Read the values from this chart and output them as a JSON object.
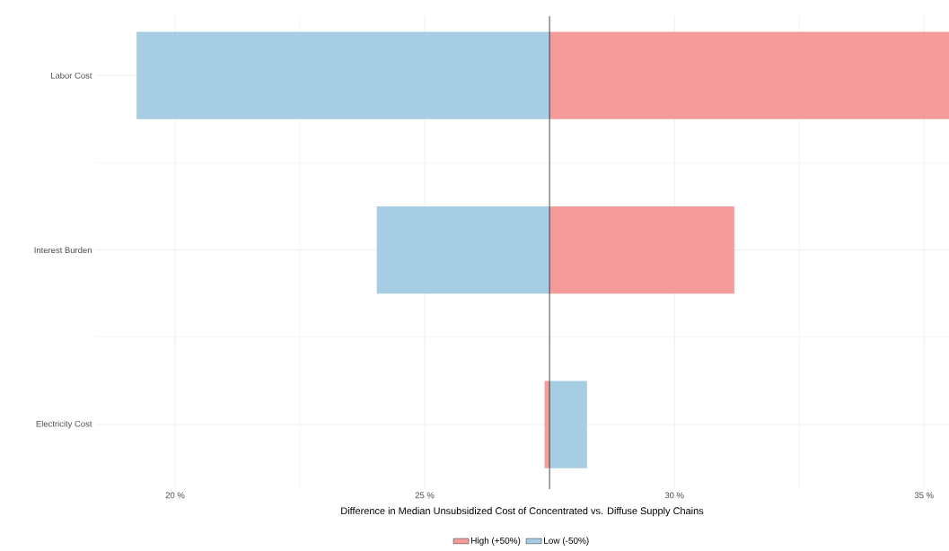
{
  "chart_data": {
    "type": "bar",
    "orientation": "horizontal",
    "categories": [
      "Labor Cost",
      "Interest Burden",
      "Electricity Cost"
    ],
    "series": [
      {
        "name": "High (+50%)",
        "color": "#f59b9a",
        "values": [
          8.0,
          3.7,
          -0.1
        ],
        "base": [
          27.5,
          27.5,
          27.5
        ]
      },
      {
        "name": "Low (-50%)",
        "color": "#a6cde3",
        "values": [
          -8.27,
          -3.46,
          0.75
        ],
        "base": [
          27.5,
          27.5,
          27.5
        ]
      }
    ],
    "xlabel": "Difference in Median Unsubsidized Cost of Concentrated vs. Diffuse Supply Chains",
    "xlim": [
      18.4,
      35.5
    ],
    "xticks": [
      {
        "value": 20,
        "label": "20 %"
      },
      {
        "value": 25,
        "label": "25 %"
      },
      {
        "value": 30,
        "label": "30 %"
      },
      {
        "value": 35,
        "label": "35 %"
      }
    ],
    "ref_lines": [
      {
        "axis": "x",
        "value": 27.5,
        "color": "#000000"
      }
    ],
    "grid": true,
    "legend": "bottom"
  }
}
